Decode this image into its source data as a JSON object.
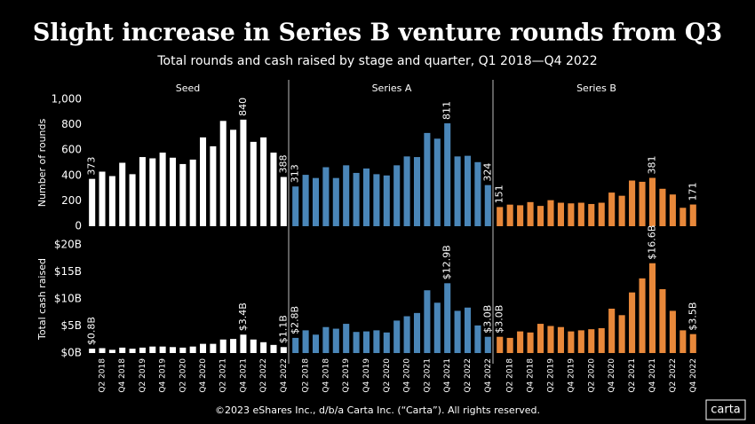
{
  "title": "Slight increase in Series B venture rounds from Q3",
  "subtitle": "Total rounds and cash raised by stage and quarter, Q1 2018—Q4 2022",
  "footer": "©2023 eShares Inc., d/b/a Carta Inc. (“Carta”). All rights reserved.",
  "logo": "carta",
  "chart_data": [
    {
      "type": "bar",
      "y_label": "Number of rounds",
      "ylim": [
        0,
        1000
      ],
      "yticks": [
        0,
        200,
        400,
        600,
        800,
        {
          "value": 1000,
          "label": "1,000"
        }
      ],
      "series": [
        {
          "name": "Seed",
          "color": "#ffffff",
          "values": [
            373,
            430,
            395,
            500,
            410,
            545,
            535,
            580,
            540,
            490,
            525,
            700,
            630,
            830,
            760,
            840,
            665,
            700,
            580,
            388
          ],
          "value_labels": [
            "373",
            null,
            null,
            null,
            null,
            null,
            null,
            null,
            null,
            null,
            null,
            null,
            null,
            null,
            null,
            "840",
            null,
            null,
            null,
            "388"
          ]
        },
        {
          "name": "Series A",
          "color": "#4a86b8",
          "values": [
            313,
            405,
            380,
            465,
            380,
            480,
            420,
            455,
            410,
            400,
            480,
            550,
            545,
            735,
            690,
            811,
            550,
            555,
            505,
            324
          ],
          "value_labels": [
            "313",
            null,
            null,
            null,
            null,
            null,
            null,
            null,
            null,
            null,
            null,
            null,
            null,
            null,
            null,
            "811",
            null,
            null,
            null,
            "324"
          ]
        },
        {
          "name": "Series B",
          "color": "#e8883a",
          "values": [
            151,
            170,
            165,
            190,
            160,
            205,
            185,
            180,
            185,
            175,
            185,
            265,
            240,
            360,
            350,
            381,
            295,
            250,
            145,
            171
          ],
          "value_labels": [
            "151",
            null,
            null,
            null,
            null,
            null,
            null,
            null,
            null,
            null,
            null,
            null,
            null,
            null,
            null,
            "381",
            null,
            null,
            null,
            "171"
          ]
        }
      ]
    },
    {
      "type": "bar",
      "y_label": "Total cash raised",
      "ylim": [
        0,
        20
      ],
      "yticks": [
        {
          "value": 0,
          "label": "$0B"
        },
        {
          "value": 5,
          "label": "$5B"
        },
        {
          "value": 10,
          "label": "$10B"
        },
        {
          "value": 15,
          "label": "$15B"
        },
        {
          "value": 20,
          "label": "$20B"
        }
      ],
      "categories": [
        null,
        "Q2 2018",
        null,
        "Q4 2018",
        null,
        "Q2 2019",
        null,
        "Q4 2019",
        null,
        "Q2 2020",
        null,
        "Q4 2020",
        null,
        "Q2 2021",
        null,
        "Q4 2021",
        null,
        "Q2 2022",
        null,
        "Q4 2022"
      ],
      "series": [
        {
          "color": "#ffffff",
          "values": [
            0.8,
            0.9,
            0.6,
            1.0,
            0.8,
            1.0,
            1.2,
            1.2,
            1.1,
            1.0,
            1.2,
            1.7,
            1.7,
            2.5,
            2.6,
            3.4,
            2.5,
            2.0,
            1.5,
            1.1
          ],
          "value_labels": [
            "$0.8B",
            null,
            null,
            null,
            null,
            null,
            null,
            null,
            null,
            null,
            null,
            null,
            null,
            null,
            null,
            "$3.4B",
            null,
            null,
            null,
            "$1.1B"
          ]
        },
        {
          "color": "#4a86b8",
          "values": [
            2.8,
            4.2,
            3.4,
            4.8,
            4.5,
            5.4,
            3.9,
            4.0,
            4.2,
            3.8,
            6.0,
            6.8,
            7.4,
            11.6,
            9.3,
            12.9,
            7.8,
            8.4,
            5.1,
            3.0
          ],
          "value_labels": [
            "$2.8B",
            null,
            null,
            null,
            null,
            null,
            null,
            null,
            null,
            null,
            null,
            null,
            null,
            null,
            null,
            "$12.9B",
            null,
            null,
            null,
            "$3.0B"
          ]
        },
        {
          "color": "#e8883a",
          "values": [
            3.0,
            2.8,
            4.0,
            3.8,
            5.4,
            5.0,
            4.8,
            4.0,
            4.2,
            4.4,
            4.6,
            8.2,
            7.0,
            11.2,
            13.8,
            16.6,
            11.8,
            7.8,
            4.2,
            3.5
          ],
          "value_labels": [
            "$3.0B",
            null,
            null,
            null,
            null,
            null,
            null,
            null,
            null,
            null,
            null,
            null,
            null,
            null,
            null,
            "$16.6B",
            null,
            null,
            null,
            "$3.5B"
          ]
        }
      ]
    }
  ]
}
